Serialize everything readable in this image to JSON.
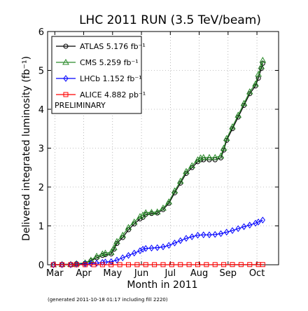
{
  "chart_data": {
    "type": "line",
    "title": "LHC 2011 RUN (3.5 TeV/beam)",
    "xlabel": "Month in 2011",
    "ylabel": "Delivered integrated luminosity (fb⁻¹)",
    "footnote": "(generated 2011-10-18 01:17 including fill 2220)",
    "x_axis": {
      "min": 0,
      "max": 8.0,
      "tick_labels": [
        "Mar",
        "Apr",
        "May",
        "Jun",
        "Jul",
        "Aug",
        "Sep",
        "Oct"
      ],
      "tick_values": [
        0.25,
        1.25,
        2.25,
        3.25,
        4.25,
        5.25,
        6.25,
        7.25
      ]
    },
    "y_axis": {
      "min": 0,
      "max": 6,
      "ticks": [
        0,
        1,
        2,
        3,
        4,
        5,
        6
      ]
    },
    "grid": true,
    "legend_position": "top-left",
    "preliminary_label": "PRELIMINARY",
    "series": [
      {
        "name": "ATLAS 5.176 fb⁻¹",
        "color": "#000000",
        "marker": "circle",
        "x": [
          0.2,
          0.5,
          0.8,
          1.0,
          1.3,
          1.5,
          1.7,
          1.9,
          2.0,
          2.2,
          2.3,
          2.4,
          2.6,
          2.8,
          3.0,
          3.2,
          3.3,
          3.4,
          3.6,
          3.8,
          4.0,
          4.2,
          4.4,
          4.6,
          4.8,
          5.0,
          5.2,
          5.3,
          5.4,
          5.6,
          5.8,
          6.0,
          6.1,
          6.2,
          6.4,
          6.6,
          6.8,
          7.0,
          7.2,
          7.3,
          7.4,
          7.45
        ],
        "y": [
          0.0,
          0.01,
          0.01,
          0.03,
          0.04,
          0.1,
          0.18,
          0.24,
          0.26,
          0.28,
          0.4,
          0.55,
          0.7,
          0.9,
          1.05,
          1.18,
          1.22,
          1.3,
          1.32,
          1.33,
          1.42,
          1.58,
          1.85,
          2.1,
          2.35,
          2.5,
          2.65,
          2.7,
          2.7,
          2.7,
          2.7,
          2.75,
          2.95,
          3.2,
          3.5,
          3.8,
          4.1,
          4.4,
          4.6,
          4.8,
          5.05,
          5.18
        ]
      },
      {
        "name": "CMS 5.259 fb⁻¹",
        "color": "#2a8a2a",
        "marker": "triangle",
        "x": [
          0.2,
          0.5,
          0.8,
          1.0,
          1.3,
          1.5,
          1.7,
          1.9,
          2.0,
          2.2,
          2.3,
          2.4,
          2.6,
          2.8,
          3.0,
          3.2,
          3.3,
          3.4,
          3.6,
          3.8,
          4.0,
          4.2,
          4.4,
          4.6,
          4.8,
          5.0,
          5.2,
          5.3,
          5.4,
          5.6,
          5.8,
          6.0,
          6.1,
          6.2,
          6.4,
          6.6,
          6.8,
          7.0,
          7.2,
          7.3,
          7.4,
          7.45
        ],
        "y": [
          0.0,
          0.01,
          0.01,
          0.03,
          0.05,
          0.12,
          0.22,
          0.28,
          0.3,
          0.32,
          0.44,
          0.6,
          0.76,
          0.96,
          1.1,
          1.24,
          1.28,
          1.34,
          1.35,
          1.36,
          1.46,
          1.62,
          1.9,
          2.15,
          2.4,
          2.55,
          2.7,
          2.75,
          2.76,
          2.76,
          2.76,
          2.8,
          3.0,
          3.25,
          3.55,
          3.85,
          4.15,
          4.45,
          4.65,
          4.9,
          5.1,
          5.26
        ]
      },
      {
        "name": "LHCb 1.152 fb⁻¹",
        "color": "#0000ff",
        "marker": "diamond",
        "x": [
          0.2,
          0.5,
          0.8,
          1.0,
          1.3,
          1.5,
          1.7,
          1.9,
          2.0,
          2.2,
          2.4,
          2.6,
          2.8,
          3.0,
          3.2,
          3.3,
          3.4,
          3.6,
          3.8,
          4.0,
          4.2,
          4.4,
          4.6,
          4.8,
          5.0,
          5.2,
          5.4,
          5.6,
          5.8,
          6.0,
          6.2,
          6.4,
          6.6,
          6.8,
          7.0,
          7.2,
          7.3,
          7.45
        ],
        "y": [
          0.0,
          0.0,
          0.0,
          0.01,
          0.02,
          0.03,
          0.04,
          0.06,
          0.07,
          0.08,
          0.12,
          0.18,
          0.24,
          0.3,
          0.36,
          0.4,
          0.42,
          0.43,
          0.44,
          0.46,
          0.5,
          0.56,
          0.62,
          0.68,
          0.72,
          0.76,
          0.77,
          0.77,
          0.78,
          0.8,
          0.84,
          0.88,
          0.93,
          0.98,
          1.02,
          1.07,
          1.1,
          1.15
        ]
      },
      {
        "name": "ALICE 4.882 pb⁻¹",
        "color": "#ff0000",
        "marker": "square",
        "x": [
          0.2,
          0.5,
          0.8,
          1.0,
          1.3,
          1.6,
          1.9,
          2.2,
          2.5,
          2.8,
          3.1,
          3.4,
          3.7,
          4.0,
          4.3,
          4.6,
          4.9,
          5.2,
          5.5,
          5.8,
          6.1,
          6.4,
          6.7,
          7.0,
          7.3,
          7.45
        ],
        "y": [
          0.0,
          0.002,
          0.002,
          0.002,
          0.002,
          0.002,
          0.002,
          0.002,
          0.002,
          0.002,
          0.003,
          0.003,
          0.003,
          0.003,
          0.003,
          0.004,
          0.004,
          0.004,
          0.004,
          0.004,
          0.004,
          0.005,
          0.005,
          0.005,
          0.005,
          0.005
        ]
      }
    ]
  }
}
